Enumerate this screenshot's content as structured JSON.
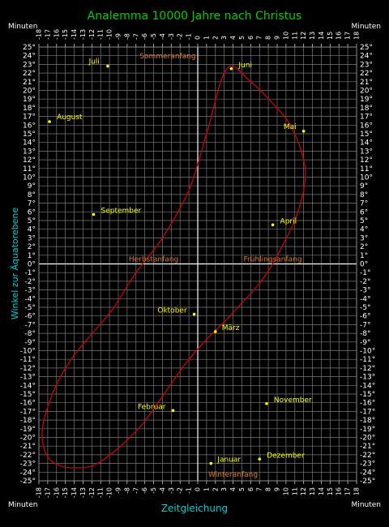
{
  "chart_data": {
    "type": "line",
    "title": "Analemma  10000 Jahre nach Christus",
    "xlabel": "Zeitgleichung",
    "ylabel": "Winkel zur Äquatorebene",
    "x_unit_label": "Minuten",
    "xlim": [
      -18,
      18
    ],
    "ylim": [
      -25,
      25
    ],
    "grid": true,
    "x_ticks": [
      -18,
      -17,
      -16,
      -15,
      -14,
      -13,
      -12,
      -11,
      -10,
      -9,
      -8,
      -7,
      -6,
      -5,
      -4,
      -3,
      -2,
      -1,
      0,
      1,
      2,
      3,
      4,
      5,
      6,
      7,
      8,
      9,
      10,
      11,
      12,
      13,
      14,
      15,
      16,
      17,
      18
    ],
    "y_ticks": [
      25,
      24,
      23,
      22,
      21,
      20,
      19,
      18,
      17,
      16,
      15,
      14,
      13,
      12,
      11,
      10,
      9,
      8,
      7,
      6,
      5,
      4,
      3,
      2,
      1,
      0,
      -1,
      -2,
      -3,
      -4,
      -5,
      -6,
      -7,
      -8,
      -9,
      -10,
      -11,
      -12,
      -13,
      -14,
      -15,
      -16,
      -17,
      -18,
      -19,
      -20,
      -21,
      -22,
      -23,
      -24,
      -25
    ],
    "y_tick_suffix": "°",
    "curve_color": "#cc0000",
    "label_color": "#ffff00",
    "season_color": "#e07a1f",
    "title_color": "#00cc00",
    "axis_title_color": "#00cccc",
    "series": [
      {
        "name": "Analemma",
        "x": [
          3.3,
          6.0,
          8.5,
          10.2,
          11.4,
          12.0,
          12.2,
          12.0,
          11.5,
          10.8,
          9.8,
          8.5,
          6.8,
          5.0,
          3.2,
          1.2,
          -1.0,
          -2.8,
          -4.5,
          -6.3,
          -8.2,
          -10.2,
          -12.0,
          -13.9,
          -15.5,
          -16.8,
          -17.5,
          -17.6,
          -17.0,
          -15.8,
          -14.0,
          -11.5,
          -9.5,
          -7.0,
          -4.0,
          -1.0,
          1.0,
          3.3
        ],
        "y": [
          22.5,
          21.0,
          18.5,
          16.5,
          14.0,
          12.0,
          10.5,
          8.5,
          6.5,
          4.5,
          2.5,
          0.0,
          -2.5,
          -4.5,
          -6.5,
          -8.5,
          -11.0,
          -13.5,
          -16.0,
          -18.5,
          -20.5,
          -22.2,
          -23.3,
          -23.5,
          -23.3,
          -22.5,
          -21.0,
          -19.0,
          -16.5,
          -13.5,
          -10.5,
          -7.5,
          -5.0,
          -1.0,
          3.0,
          8.5,
          15.0,
          22.5
        ]
      }
    ],
    "months": [
      {
        "name": "Januar",
        "x": 1.5,
        "y": -23.0
      },
      {
        "name": "Februar",
        "x": -2.8,
        "y": -16.9
      },
      {
        "name": "März",
        "x": 2.0,
        "y": -7.8
      },
      {
        "name": "April",
        "x": 8.5,
        "y": 4.5
      },
      {
        "name": "Mai",
        "x": 12.0,
        "y": 15.3
      },
      {
        "name": "Juni",
        "x": 3.8,
        "y": 22.5
      },
      {
        "name": "Juli",
        "x": -10.2,
        "y": 22.8
      },
      {
        "name": "August",
        "x": -16.8,
        "y": 16.4
      },
      {
        "name": "September",
        "x": -11.8,
        "y": 5.7
      },
      {
        "name": "Oktober",
        "x": -0.4,
        "y": -5.8
      },
      {
        "name": "November",
        "x": 7.8,
        "y": -16.1
      },
      {
        "name": "Dezember",
        "x": 7.0,
        "y": -22.5
      }
    ],
    "seasons": [
      {
        "name": "Sommeranfang",
        "x": -3.4,
        "y": 23.4
      },
      {
        "name": "Frühlingsanfang",
        "x": 8.5,
        "y": 0.0
      },
      {
        "name": "Herbstanfang",
        "x": -5.0,
        "y": 0.0
      },
      {
        "name": "Winteranfang",
        "x": 4.0,
        "y": -23.4
      }
    ]
  }
}
